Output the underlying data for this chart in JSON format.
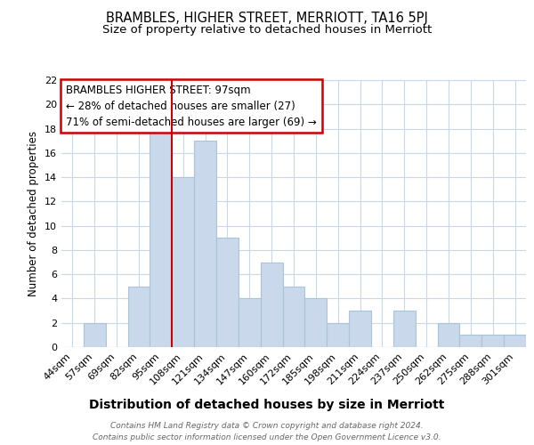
{
  "title1": "BRAMBLES, HIGHER STREET, MERRIOTT, TA16 5PJ",
  "title2": "Size of property relative to detached houses in Merriott",
  "xlabel": "Distribution of detached houses by size in Merriott",
  "ylabel": "Number of detached properties",
  "footnote1": "Contains HM Land Registry data © Crown copyright and database right 2024.",
  "footnote2": "Contains public sector information licensed under the Open Government Licence v3.0.",
  "categories": [
    "44sqm",
    "57sqm",
    "69sqm",
    "82sqm",
    "95sqm",
    "108sqm",
    "121sqm",
    "134sqm",
    "147sqm",
    "160sqm",
    "172sqm",
    "185sqm",
    "198sqm",
    "211sqm",
    "224sqm",
    "237sqm",
    "250sqm",
    "262sqm",
    "275sqm",
    "288sqm",
    "301sqm"
  ],
  "values": [
    0,
    2,
    0,
    5,
    18,
    14,
    17,
    9,
    4,
    7,
    5,
    4,
    2,
    3,
    0,
    3,
    0,
    2,
    1,
    1,
    1
  ],
  "bar_color": "#c9d9eb",
  "bar_edge_color": "#a8c4d8",
  "red_line_index": 4,
  "ylim": [
    0,
    22
  ],
  "yticks": [
    0,
    2,
    4,
    6,
    8,
    10,
    12,
    14,
    16,
    18,
    20,
    22
  ],
  "annotation_text": "BRAMBLES HIGHER STREET: 97sqm\n← 28% of detached houses are smaller (27)\n71% of semi-detached houses are larger (69) →",
  "annotation_box_color": "#ffffff",
  "annotation_box_edge_color": "#cc0000",
  "property_line_color": "#cc0000",
  "grid_color": "#c8d8e8",
  "background_color": "#ffffff",
  "title1_fontsize": 10.5,
  "title2_fontsize": 9.5,
  "xlabel_fontsize": 10,
  "ylabel_fontsize": 8.5,
  "tick_fontsize": 8,
  "annotation_fontsize": 8.5,
  "footnote_fontsize": 6.5
}
